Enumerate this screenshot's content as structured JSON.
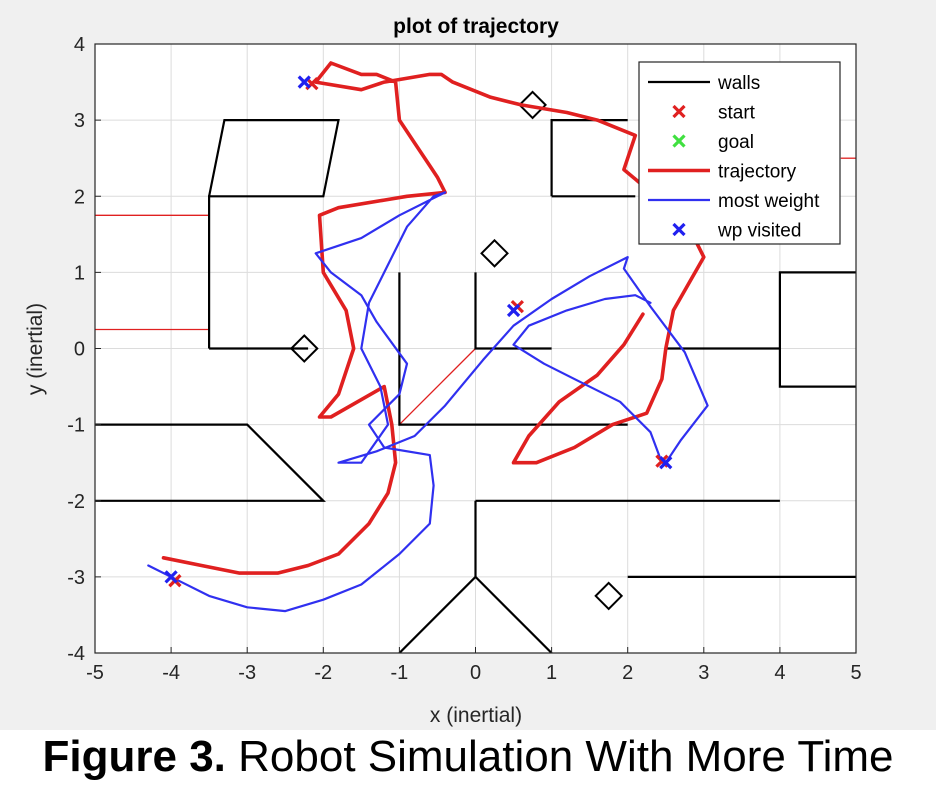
{
  "caption": {
    "label": "Figure 3.",
    "text": " Robot Simulation With More Time"
  },
  "chart_data": {
    "type": "line",
    "title": "plot of trajectory",
    "xlabel": "x (inertial)",
    "ylabel": "y (inertial)",
    "xlim": [
      -5,
      5
    ],
    "ylim": [
      -4,
      4
    ],
    "xticks": [
      -5,
      -4,
      -3,
      -2,
      -1,
      0,
      1,
      2,
      3,
      4,
      5
    ],
    "yticks": [
      -4,
      -3,
      -2,
      -1,
      0,
      1,
      2,
      3,
      4
    ],
    "grid": true,
    "legend_position": "top-right",
    "colors": {
      "walls": "#000000",
      "start": "#e02020",
      "goal": "#40e040",
      "trajectory": "#e02020",
      "most_weight": "#3030f0",
      "wp_visited": "#2020f0",
      "thin_red": "#e02020",
      "markers": "#000000"
    },
    "legend": [
      "walls",
      "start",
      "goal",
      "trajectory",
      "most weight",
      "wp visited"
    ],
    "walls": [
      [
        [
          -3.5,
          0
        ],
        [
          -3.5,
          2
        ],
        [
          -2,
          2
        ],
        [
          -1.8,
          3
        ],
        [
          -3.3,
          3
        ],
        [
          -3.5,
          2
        ]
      ],
      [
        [
          -3.5,
          0
        ],
        [
          -2.2,
          0
        ]
      ],
      [
        [
          -5,
          -1
        ],
        [
          -3,
          -1
        ],
        [
          -2,
          -2
        ],
        [
          -5,
          -2
        ]
      ],
      [
        [
          -1,
          1
        ],
        [
          -1,
          -1
        ],
        [
          2,
          -1
        ]
      ],
      [
        [
          0,
          1
        ],
        [
          0,
          0
        ],
        [
          1,
          0
        ]
      ],
      [
        [
          0,
          -2
        ],
        [
          0,
          -3
        ],
        [
          -1,
          -4
        ]
      ],
      [
        [
          0,
          -3
        ],
        [
          1,
          -4
        ]
      ],
      [
        [
          0,
          -2
        ],
        [
          4,
          -2
        ]
      ],
      [
        [
          2,
          -3
        ],
        [
          5,
          -3
        ]
      ],
      [
        [
          1,
          2
        ],
        [
          1,
          3
        ],
        [
          2,
          3
        ]
      ],
      [
        [
          1,
          2
        ],
        [
          2.1,
          2
        ]
      ],
      [
        [
          2.5,
          0
        ],
        [
          4,
          0
        ]
      ],
      [
        [
          5,
          1
        ],
        [
          4,
          1
        ],
        [
          4,
          -0.5
        ],
        [
          5,
          -0.5
        ]
      ]
    ],
    "thin_red_lines": [
      [
        [
          -5,
          1.75
        ],
        [
          -3.5,
          1.75
        ]
      ],
      [
        [
          -5,
          0.25
        ],
        [
          -3.5,
          0.25
        ]
      ],
      [
        [
          -1,
          -1
        ],
        [
          0,
          0
        ]
      ],
      [
        [
          4.8,
          2.5
        ],
        [
          5,
          2.5
        ]
      ]
    ],
    "diamond_markers": [
      [
        0.75,
        3.2
      ],
      [
        0.25,
        1.25
      ],
      [
        -2.25,
        0
      ],
      [
        1.75,
        -3.25
      ]
    ],
    "series": [
      {
        "name": "trajectory",
        "x": [
          -4.1,
          -3.6,
          -3.1,
          -2.6,
          -2.2,
          -1.8,
          -1.4,
          -1.15,
          -1.05,
          -1.1,
          -1.2,
          -1.9,
          -2.05,
          -1.8,
          -1.6,
          -1.7,
          -2.0,
          -2.05,
          -1.8,
          -1.2,
          -0.9,
          -0.4,
          -0.5,
          -0.6,
          -0.8,
          -1.0,
          -1.05,
          -1.3,
          -1.5,
          -1.9,
          -2.1,
          -1.5,
          -1.2,
          -0.6,
          -0.45,
          -0.3,
          0.2,
          0.6,
          1.2,
          1.6,
          2.1,
          1.95,
          2.25,
          2.7,
          3.0,
          2.6,
          2.5,
          2.45,
          2.25,
          1.8,
          1.3,
          0.8,
          0.5,
          0.7,
          1.1,
          1.6,
          1.95,
          2.2
        ],
        "y": [
          -2.75,
          -2.85,
          -2.95,
          -2.95,
          -2.85,
          -2.7,
          -2.3,
          -1.9,
          -1.5,
          -1.0,
          -0.5,
          -0.9,
          -0.9,
          -0.6,
          0.0,
          0.5,
          1.0,
          1.75,
          1.85,
          1.95,
          2.0,
          2.05,
          2.25,
          2.4,
          2.7,
          3.0,
          3.5,
          3.6,
          3.6,
          3.75,
          3.5,
          3.4,
          3.5,
          3.6,
          3.6,
          3.5,
          3.3,
          3.2,
          3.1,
          3.0,
          2.8,
          2.35,
          2.1,
          1.8,
          1.2,
          0.5,
          0.0,
          -0.4,
          -0.85,
          -1.0,
          -1.3,
          -1.5,
          -1.5,
          -1.15,
          -0.7,
          -0.35,
          0.05,
          0.45
        ]
      },
      {
        "name": "most weight",
        "x": [
          -4.3,
          -3.9,
          -3.5,
          -3.0,
          -2.5,
          -2.0,
          -1.5,
          -1.0,
          -0.6,
          -0.55,
          -0.6,
          -1.2,
          -1.4,
          -1.0,
          -0.9,
          -1.3,
          -1.5,
          -1.9,
          -2.1,
          -1.5,
          -1.0,
          -0.4,
          -0.55,
          -0.9,
          -1.2,
          -1.4,
          -1.5,
          -1.25,
          -1.15,
          -1.5,
          -1.8,
          -1.3,
          -0.8,
          -0.4,
          0.1,
          0.5,
          1.0,
          1.5,
          2.0,
          1.95,
          2.3,
          2.75,
          3.05,
          2.7,
          2.5,
          2.45,
          2.3,
          1.9,
          1.4,
          0.9,
          0.5,
          0.7,
          1.2,
          1.7,
          2.1,
          2.3
        ],
        "y": [
          -2.85,
          -3.05,
          -3.25,
          -3.4,
          -3.45,
          -3.3,
          -3.1,
          -2.7,
          -2.3,
          -1.8,
          -1.4,
          -1.3,
          -1.0,
          -0.6,
          -0.2,
          0.35,
          0.7,
          1.0,
          1.25,
          1.45,
          1.75,
          2.05,
          2.0,
          1.6,
          1.0,
          0.6,
          0.0,
          -0.5,
          -1.0,
          -1.5,
          -1.5,
          -1.35,
          -1.15,
          -0.75,
          -0.15,
          0.3,
          0.65,
          0.95,
          1.2,
          1.05,
          0.55,
          -0.05,
          -0.75,
          -1.2,
          -1.5,
          -1.5,
          -1.1,
          -0.7,
          -0.45,
          -0.2,
          0.05,
          0.3,
          0.5,
          0.65,
          0.7,
          0.6
        ]
      }
    ],
    "wp_visited": [
      [
        -4.0,
        -3.0
      ],
      [
        -2.25,
        3.5
      ],
      [
        0.5,
        0.5
      ],
      [
        2.5,
        -1.5
      ]
    ],
    "start_markers": [
      [
        -3.95,
        -3.05
      ],
      [
        -2.15,
        3.48
      ],
      [
        0.55,
        0.55
      ],
      [
        2.45,
        -1.48
      ]
    ]
  }
}
